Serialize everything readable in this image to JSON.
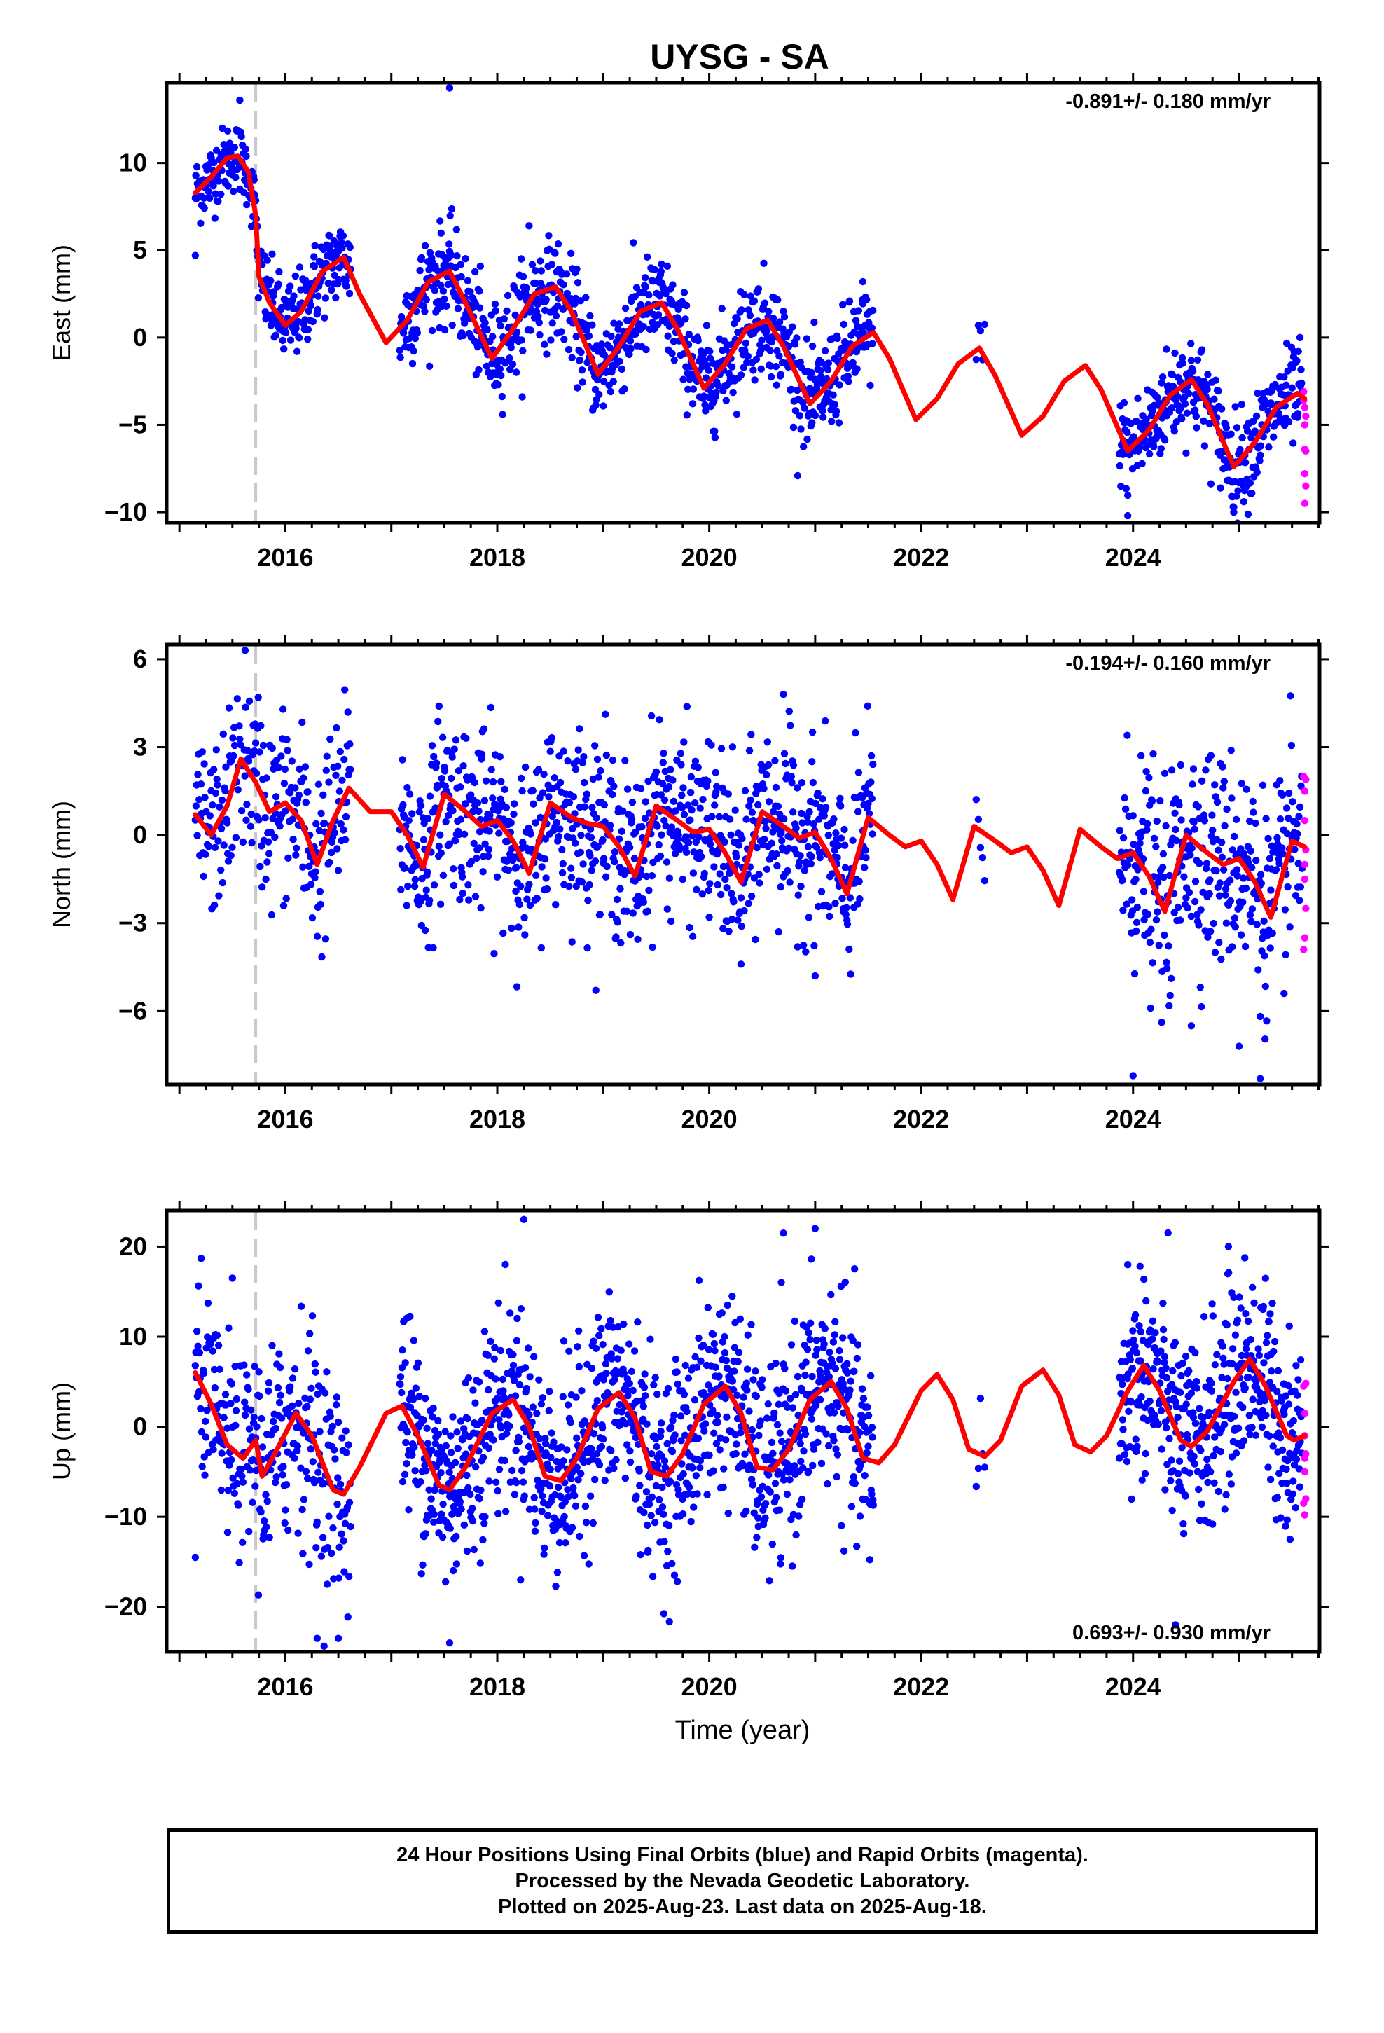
{
  "figure": {
    "title": "UYSG - SA",
    "x_label": "Time (year)"
  },
  "chart_data": [
    {
      "type": "scatter",
      "ylabel": "East (mm)",
      "xlim": [
        2014.88,
        2025.76
      ],
      "ylim": [
        -10.6,
        14.6
      ],
      "xticks": [
        2016,
        2018,
        2020,
        2022,
        2024
      ],
      "yticks": [
        -10,
        -5,
        0,
        5,
        10
      ],
      "rate_text": "-0.891+/- 0.180 mm/yr",
      "rate_position": "top-right",
      "step_line_year": 2015.72,
      "fit": {
        "color": "#ff0000",
        "points": [
          [
            2015.15,
            8.3
          ],
          [
            2015.3,
            9.2
          ],
          [
            2015.45,
            10.3
          ],
          [
            2015.55,
            10.4
          ],
          [
            2015.65,
            9.5
          ],
          [
            2015.72,
            7.0
          ],
          [
            2015.75,
            3.5
          ],
          [
            2015.85,
            2.0
          ],
          [
            2016.0,
            0.7
          ],
          [
            2016.15,
            1.5
          ],
          [
            2016.35,
            3.8
          ],
          [
            2016.55,
            4.6
          ],
          [
            2016.7,
            2.5
          ],
          [
            2016.95,
            -0.3
          ],
          [
            2017.15,
            1.0
          ],
          [
            2017.35,
            3.2
          ],
          [
            2017.55,
            3.8
          ],
          [
            2017.7,
            2.0
          ],
          [
            2017.95,
            -1.2
          ],
          [
            2018.15,
            0.5
          ],
          [
            2018.35,
            2.5
          ],
          [
            2018.55,
            2.9
          ],
          [
            2018.7,
            1.5
          ],
          [
            2018.95,
            -2.1
          ],
          [
            2019.15,
            -0.5
          ],
          [
            2019.35,
            1.5
          ],
          [
            2019.55,
            2.0
          ],
          [
            2019.7,
            0.5
          ],
          [
            2019.95,
            -2.9
          ],
          [
            2020.15,
            -1.5
          ],
          [
            2020.35,
            0.5
          ],
          [
            2020.55,
            1.0
          ],
          [
            2020.7,
            -0.5
          ],
          [
            2020.95,
            -3.8
          ],
          [
            2021.15,
            -2.5
          ],
          [
            2021.35,
            -0.5
          ],
          [
            2021.55,
            0.3
          ],
          [
            2021.7,
            -1.2
          ],
          [
            2021.95,
            -4.7
          ],
          [
            2022.15,
            -3.5
          ],
          [
            2022.35,
            -1.5
          ],
          [
            2022.55,
            -0.6
          ],
          [
            2022.7,
            -2.2
          ],
          [
            2022.95,
            -5.6
          ],
          [
            2023.15,
            -4.5
          ],
          [
            2023.35,
            -2.5
          ],
          [
            2023.55,
            -1.6
          ],
          [
            2023.7,
            -3.0
          ],
          [
            2023.95,
            -6.5
          ],
          [
            2024.15,
            -5.3
          ],
          [
            2024.35,
            -3.3
          ],
          [
            2024.55,
            -2.4
          ],
          [
            2024.7,
            -3.8
          ],
          [
            2024.95,
            -7.4
          ],
          [
            2025.15,
            -6.0
          ],
          [
            2025.35,
            -4.0
          ],
          [
            2025.55,
            -3.2
          ],
          [
            2025.62,
            -3.5
          ]
        ]
      },
      "final_orbits": {
        "color": "#0000ff",
        "segments": [
          {
            "from": 2015.15,
            "to": 2015.72,
            "step": 0.005,
            "spread": 1.0
          },
          {
            "from": 2015.72,
            "to": 2016.62,
            "step": 0.005,
            "spread": 1.2
          },
          {
            "from": 2017.08,
            "to": 2021.55,
            "step": 0.005,
            "spread": 1.4
          },
          {
            "from": 2022.52,
            "to": 2022.6,
            "step": 0.02,
            "spread": 1.0
          },
          {
            "from": 2023.87,
            "to": 2025.6,
            "step": 0.005,
            "spread": 1.4
          }
        ],
        "outliers": [
          [
            2017.55,
            14.3
          ],
          [
            2015.15,
            4.7
          ],
          [
            2023.95,
            -10.2
          ],
          [
            2024.95,
            -10.0
          ],
          [
            2021.45,
            3.2
          ],
          [
            2018.3,
            6.4
          ],
          [
            2015.57,
            13.6
          ]
        ]
      },
      "rapid_orbits": {
        "color": "#ff00ff",
        "points": [
          [
            2025.61,
            -3.1
          ],
          [
            2025.62,
            -4.0
          ],
          [
            2025.62,
            -5.0
          ],
          [
            2025.63,
            -6.5
          ],
          [
            2025.62,
            -7.8
          ],
          [
            2025.63,
            -8.5
          ],
          [
            2025.62,
            -9.5
          ],
          [
            2025.61,
            -3.6
          ],
          [
            2025.63,
            -4.5
          ],
          [
            2025.62,
            -6.4
          ]
        ]
      }
    },
    {
      "type": "scatter",
      "ylabel": "North (mm)",
      "xlim": [
        2014.88,
        2025.76
      ],
      "ylim": [
        -8.5,
        6.5
      ],
      "xticks": [
        2016,
        2018,
        2020,
        2022,
        2024
      ],
      "yticks": [
        -6,
        -3,
        0,
        3,
        6
      ],
      "rate_text": "-0.194+/- 0.160 mm/yr",
      "rate_position": "top-right",
      "step_line_year": 2015.72,
      "fit": {
        "color": "#ff0000",
        "points": [
          [
            2015.15,
            0.7
          ],
          [
            2015.3,
            0.0
          ],
          [
            2015.45,
            1.0
          ],
          [
            2015.58,
            2.6
          ],
          [
            2015.72,
            1.8
          ],
          [
            2015.85,
            0.8
          ],
          [
            2016.0,
            1.1
          ],
          [
            2016.15,
            0.5
          ],
          [
            2016.3,
            -1.0
          ],
          [
            2016.45,
            0.5
          ],
          [
            2016.6,
            1.6
          ],
          [
            2016.8,
            0.8
          ],
          [
            2017.0,
            0.8
          ],
          [
            2017.15,
            0.0
          ],
          [
            2017.3,
            -1.1
          ],
          [
            2017.5,
            1.4
          ],
          [
            2017.7,
            0.8
          ],
          [
            2017.85,
            0.3
          ],
          [
            2018.0,
            0.5
          ],
          [
            2018.15,
            -0.2
          ],
          [
            2018.3,
            -1.3
          ],
          [
            2018.5,
            1.1
          ],
          [
            2018.7,
            0.6
          ],
          [
            2018.85,
            0.4
          ],
          [
            2019.0,
            0.3
          ],
          [
            2019.15,
            -0.4
          ],
          [
            2019.3,
            -1.4
          ],
          [
            2019.5,
            1.0
          ],
          [
            2019.7,
            0.5
          ],
          [
            2019.85,
            0.1
          ],
          [
            2020.0,
            0.2
          ],
          [
            2020.15,
            -0.6
          ],
          [
            2020.3,
            -1.6
          ],
          [
            2020.5,
            0.8
          ],
          [
            2020.7,
            0.3
          ],
          [
            2020.85,
            -0.1
          ],
          [
            2021.0,
            0.1
          ],
          [
            2021.15,
            -0.8
          ],
          [
            2021.3,
            -2.0
          ],
          [
            2021.5,
            0.6
          ],
          [
            2021.7,
            0.0
          ],
          [
            2021.85,
            -0.4
          ],
          [
            2022.0,
            -0.2
          ],
          [
            2022.15,
            -1.0
          ],
          [
            2022.3,
            -2.2
          ],
          [
            2022.5,
            0.3
          ],
          [
            2022.7,
            -0.2
          ],
          [
            2022.85,
            -0.6
          ],
          [
            2023.0,
            -0.4
          ],
          [
            2023.15,
            -1.2
          ],
          [
            2023.3,
            -2.4
          ],
          [
            2023.5,
            0.2
          ],
          [
            2023.7,
            -0.4
          ],
          [
            2023.85,
            -0.8
          ],
          [
            2024.0,
            -0.6
          ],
          [
            2024.15,
            -1.4
          ],
          [
            2024.3,
            -2.6
          ],
          [
            2024.5,
            0.0
          ],
          [
            2024.7,
            -0.6
          ],
          [
            2024.85,
            -1.0
          ],
          [
            2025.0,
            -0.8
          ],
          [
            2025.15,
            -1.6
          ],
          [
            2025.3,
            -2.8
          ],
          [
            2025.5,
            -0.2
          ],
          [
            2025.62,
            -0.4
          ]
        ]
      },
      "final_orbits": {
        "color": "#0000ff",
        "segments": [
          {
            "from": 2015.15,
            "to": 2015.72,
            "step": 0.006,
            "spread": 1.4
          },
          {
            "from": 2015.72,
            "to": 2016.62,
            "step": 0.006,
            "spread": 1.6
          },
          {
            "from": 2017.08,
            "to": 2021.55,
            "step": 0.005,
            "spread": 1.5
          },
          {
            "from": 2022.52,
            "to": 2022.6,
            "step": 0.02,
            "spread": 1.2
          },
          {
            "from": 2023.87,
            "to": 2025.6,
            "step": 0.005,
            "spread": 1.8
          }
        ],
        "outliers": [
          [
            2015.62,
            6.3
          ],
          [
            2017.45,
            4.4
          ],
          [
            2020.3,
            -4.4
          ],
          [
            2021.0,
            -4.8
          ],
          [
            2024.0,
            -8.2
          ],
          [
            2025.2,
            -8.3
          ],
          [
            2025.0,
            -7.2
          ],
          [
            2024.55,
            -6.5
          ],
          [
            2020.7,
            4.8
          ]
        ]
      },
      "rapid_orbits": {
        "color": "#ff00ff",
        "points": [
          [
            2025.61,
            2.0
          ],
          [
            2025.62,
            1.5
          ],
          [
            2025.62,
            0.5
          ],
          [
            2025.63,
            -0.5
          ],
          [
            2025.62,
            -1.5
          ],
          [
            2025.63,
            -2.5
          ],
          [
            2025.62,
            -3.5
          ],
          [
            2025.61,
            -3.9
          ],
          [
            2025.63,
            1.9
          ],
          [
            2025.62,
            -1.0
          ]
        ]
      }
    },
    {
      "type": "scatter",
      "ylabel": "Up (mm)",
      "xlim": [
        2014.88,
        2025.76
      ],
      "ylim": [
        -25,
        24
      ],
      "xticks": [
        2016,
        2018,
        2020,
        2022,
        2024
      ],
      "yticks": [
        -20,
        -10,
        0,
        10,
        20
      ],
      "rate_text": "0.693+/- 0.930 mm/yr",
      "rate_position": "bottom-right",
      "step_line_year": 2015.72,
      "fit": {
        "color": "#ff0000",
        "points": [
          [
            2015.15,
            6.0
          ],
          [
            2015.3,
            2.5
          ],
          [
            2015.45,
            -2.0
          ],
          [
            2015.6,
            -3.5
          ],
          [
            2015.72,
            -1.5
          ],
          [
            2015.78,
            -5.5
          ],
          [
            2015.9,
            -3.0
          ],
          [
            2016.1,
            1.5
          ],
          [
            2016.25,
            -1.0
          ],
          [
            2016.45,
            -7.0
          ],
          [
            2016.55,
            -7.5
          ],
          [
            2016.7,
            -4.5
          ],
          [
            2016.95,
            1.5
          ],
          [
            2017.1,
            2.3
          ],
          [
            2017.25,
            -1.0
          ],
          [
            2017.45,
            -6.5
          ],
          [
            2017.55,
            -7.0
          ],
          [
            2017.7,
            -4.5
          ],
          [
            2017.95,
            1.5
          ],
          [
            2018.15,
            3.0
          ],
          [
            2018.3,
            0.0
          ],
          [
            2018.45,
            -5.5
          ],
          [
            2018.6,
            -6.0
          ],
          [
            2018.75,
            -3.5
          ],
          [
            2018.95,
            2.0
          ],
          [
            2019.15,
            3.8
          ],
          [
            2019.3,
            1.0
          ],
          [
            2019.45,
            -5.0
          ],
          [
            2019.6,
            -5.5
          ],
          [
            2019.75,
            -3.0
          ],
          [
            2019.95,
            2.5
          ],
          [
            2020.15,
            4.5
          ],
          [
            2020.3,
            1.5
          ],
          [
            2020.45,
            -4.5
          ],
          [
            2020.6,
            -4.8
          ],
          [
            2020.75,
            -2.5
          ],
          [
            2020.95,
            3.0
          ],
          [
            2021.15,
            5.0
          ],
          [
            2021.3,
            2.0
          ],
          [
            2021.45,
            -3.5
          ],
          [
            2021.6,
            -4.0
          ],
          [
            2021.75,
            -2.0
          ],
          [
            2022.0,
            4.0
          ],
          [
            2022.15,
            5.8
          ],
          [
            2022.3,
            3.0
          ],
          [
            2022.45,
            -2.5
          ],
          [
            2022.6,
            -3.3
          ],
          [
            2022.75,
            -1.5
          ],
          [
            2022.95,
            4.5
          ],
          [
            2023.15,
            6.3
          ],
          [
            2023.3,
            3.5
          ],
          [
            2023.45,
            -2.0
          ],
          [
            2023.6,
            -2.8
          ],
          [
            2023.75,
            -1.0
          ],
          [
            2023.95,
            4.0
          ],
          [
            2024.1,
            6.8
          ],
          [
            2024.25,
            4.0
          ],
          [
            2024.45,
            -1.5
          ],
          [
            2024.55,
            -2.2
          ],
          [
            2024.7,
            -0.5
          ],
          [
            2024.95,
            5.0
          ],
          [
            2025.1,
            7.5
          ],
          [
            2025.25,
            4.5
          ],
          [
            2025.45,
            -1.0
          ],
          [
            2025.52,
            -1.5
          ],
          [
            2025.62,
            -1.0
          ]
        ]
      },
      "final_orbits": {
        "color": "#0000ff",
        "segments": [
          {
            "from": 2015.15,
            "to": 2015.72,
            "step": 0.005,
            "spread": 5.0
          },
          {
            "from": 2015.72,
            "to": 2016.62,
            "step": 0.005,
            "spread": 6.0
          },
          {
            "from": 2017.08,
            "to": 2021.55,
            "step": 0.004,
            "spread": 5.5
          },
          {
            "from": 2022.52,
            "to": 2022.6,
            "step": 0.02,
            "spread": 4.0
          },
          {
            "from": 2023.87,
            "to": 2025.6,
            "step": 0.004,
            "spread": 5.5
          }
        ],
        "outliers": [
          [
            2018.25,
            23.0
          ],
          [
            2020.7,
            21.5
          ],
          [
            2021.0,
            22.0
          ],
          [
            2017.55,
            -24.0
          ],
          [
            2016.3,
            -23.5
          ],
          [
            2016.5,
            -23.5
          ],
          [
            2024.4,
            -22.0
          ],
          [
            2015.15,
            -14.5
          ],
          [
            2024.9,
            20.0
          ],
          [
            2023.95,
            18.0
          ],
          [
            2015.5,
            16.5
          ]
        ]
      },
      "rapid_orbits": {
        "color": "#ff00ff",
        "points": [
          [
            2025.61,
            4.5
          ],
          [
            2025.62,
            1.5
          ],
          [
            2025.62,
            -1.0
          ],
          [
            2025.63,
            -3.0
          ],
          [
            2025.62,
            -5.0
          ],
          [
            2025.63,
            -8.0
          ],
          [
            2025.62,
            -9.8
          ],
          [
            2025.61,
            -8.5
          ],
          [
            2025.63,
            4.8
          ],
          [
            2025.62,
            -3.5
          ]
        ]
      }
    }
  ],
  "footer": {
    "line1": "24 Hour Positions Using Final Orbits (blue) and Rapid Orbits (magenta).",
    "line2": "Processed by the Nevada Geodetic Laboratory.",
    "line3": "Plotted on 2025-Aug-23. Last data on 2025-Aug-18."
  }
}
